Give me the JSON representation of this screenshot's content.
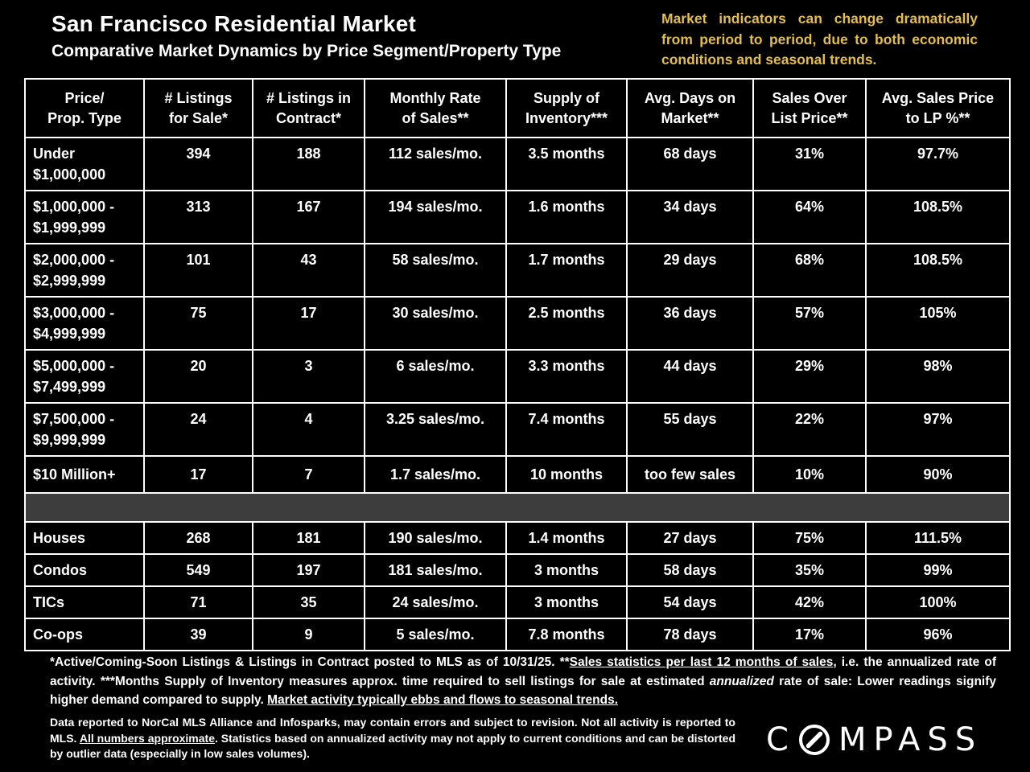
{
  "header": {
    "title": "San Francisco Residential Market",
    "subtitle": "Comparative Market Dynamics by Price Segment/Property Type",
    "note": "Market indicators can change dramatically from period to period, due to both economic conditions and seasonal trends."
  },
  "colors": {
    "background": "#000000",
    "text_white": "#ffffff",
    "accent_gold": "#e3bd4e",
    "divider_gray": "#3d3d3d",
    "grid_border": "#ffffff"
  },
  "table": {
    "headers": [
      [
        "Price/",
        "Prop. Type"
      ],
      [
        "# Listings",
        "for Sale*"
      ],
      [
        "# Listings in",
        "Contract*"
      ],
      [
        "Monthly Rate",
        "of Sales**"
      ],
      [
        "Supply of",
        "Inventory***"
      ],
      [
        "Avg. Days on",
        "Market**"
      ],
      [
        "Sales Over",
        "List Price**"
      ],
      [
        "Avg. Sales Price",
        "to LP %**"
      ]
    ],
    "segment_rows": [
      {
        "label": [
          "Under",
          "$1,000,000"
        ],
        "values": [
          "394",
          "188",
          "112 sales/mo.",
          "3.5 months",
          "68 days",
          "31%",
          "97.7%"
        ]
      },
      {
        "label": [
          "$1,000,000 -",
          "$1,999,999"
        ],
        "values": [
          "313",
          "167",
          "194 sales/mo.",
          "1.6 months",
          "34 days",
          "64%",
          "108.5%"
        ]
      },
      {
        "label": [
          "$2,000,000 -",
          "$2,999,999"
        ],
        "values": [
          "101",
          "43",
          "58 sales/mo.",
          "1.7 months",
          "29 days",
          "68%",
          "108.5%"
        ]
      },
      {
        "label": [
          "$3,000,000 -",
          "$4,999,999"
        ],
        "values": [
          "75",
          "17",
          "30 sales/mo.",
          "2.5 months",
          "36 days",
          "57%",
          "105%"
        ]
      },
      {
        "label": [
          "$5,000,000 -",
          "$7,499,999"
        ],
        "values": [
          "20",
          "3",
          "6 sales/mo.",
          "3.3 months",
          "44 days",
          "29%",
          "98%"
        ]
      },
      {
        "label": [
          "$7,500,000 -",
          "$9,999,999"
        ],
        "values": [
          "24",
          "4",
          "3.25 sales/mo.",
          "7.4 months",
          "55 days",
          "22%",
          "97%"
        ]
      },
      {
        "label": [
          "$10 Million+"
        ],
        "values": [
          "17",
          "7",
          "1.7 sales/mo.",
          "10 months",
          "too few sales",
          "10%",
          "90%"
        ]
      }
    ],
    "property_rows": [
      {
        "label": [
          "Houses"
        ],
        "values": [
          "268",
          "181",
          "190 sales/mo.",
          "1.4 months",
          "27 days",
          "75%",
          "111.5%"
        ]
      },
      {
        "label": [
          "Condos"
        ],
        "values": [
          "549",
          "197",
          "181 sales/mo.",
          "3 months",
          "58 days",
          "35%",
          "99%"
        ]
      },
      {
        "label": [
          "TICs"
        ],
        "values": [
          "71",
          "35",
          "24 sales/mo.",
          "3 months",
          "54 days",
          "42%",
          "100%"
        ]
      },
      {
        "label": [
          "Co-ops"
        ],
        "values": [
          "39",
          "9",
          "5 sales/mo.",
          "7.8 months",
          "78 days",
          "17%",
          "96%"
        ]
      }
    ]
  },
  "footnotes": {
    "primary": [
      {
        "t": "*Active/Coming-Soon Listings & Listings in Contract posted to MLS as of 10/31/25. **"
      },
      {
        "t": "Sales statistics per last 12 months of sales",
        "u": true
      },
      {
        "t": ", i.e. the annualized rate of activity.  ***Months Supply of Inventory measures approx. time required to sell listings for sale at estimated "
      },
      {
        "t": "annualized",
        "i": true
      },
      {
        "t": " rate of sale:  Lower readings signify higher demand compared to supply. "
      },
      {
        "t": "Market activity typically ebbs and flows to seasonal trends.",
        "u": true
      }
    ],
    "secondary": [
      {
        "t": "Data reported to NorCal MLS Alliance and Infosparks, may contain errors and subject to revision.  Not all activity is reported to MLS. "
      },
      {
        "t": "All numbers approximate",
        "u": true
      },
      {
        "t": ". Statistics based on annualized activity may not apply to current conditions and can be distorted by outlier data (especially in low sales volumes)."
      }
    ]
  },
  "logo": {
    "name": "COMPASS",
    "before_o": "C",
    "after_o": "MPASS"
  }
}
